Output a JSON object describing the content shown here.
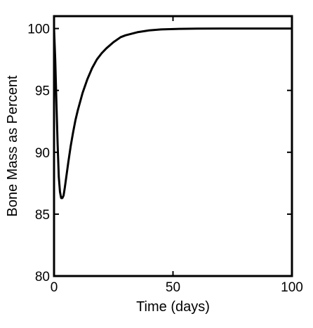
{
  "chart_data": {
    "type": "line",
    "title": "",
    "xlabel": "Time (days)",
    "ylabel": "Bone Mass as Percent",
    "xlim": [
      0,
      100
    ],
    "ylim": [
      80,
      101
    ],
    "xticks": [
      0,
      50,
      100
    ],
    "yticks": [
      80,
      85,
      90,
      95,
      100
    ],
    "grid": false,
    "series": [
      {
        "color": "#000000",
        "x": [
          0,
          0.5,
          1,
          1.5,
          2,
          2.5,
          3,
          3.5,
          4,
          4.5,
          5,
          6,
          7,
          8,
          9,
          10,
          12,
          14,
          16,
          18,
          20,
          22,
          25,
          28,
          30,
          35,
          40,
          45,
          50,
          55,
          60,
          70,
          80,
          90,
          100
        ],
        "y": [
          100.0,
          97.5,
          94.0,
          90.7,
          88.0,
          86.8,
          86.3,
          86.3,
          86.5,
          87.1,
          87.8,
          89.2,
          90.5,
          91.6,
          92.6,
          93.4,
          94.8,
          95.9,
          96.8,
          97.5,
          98.0,
          98.4,
          98.9,
          99.3,
          99.45,
          99.7,
          99.85,
          99.93,
          99.96,
          99.98,
          99.99,
          100.0,
          100.0,
          100.0,
          100.0
        ]
      }
    ]
  }
}
